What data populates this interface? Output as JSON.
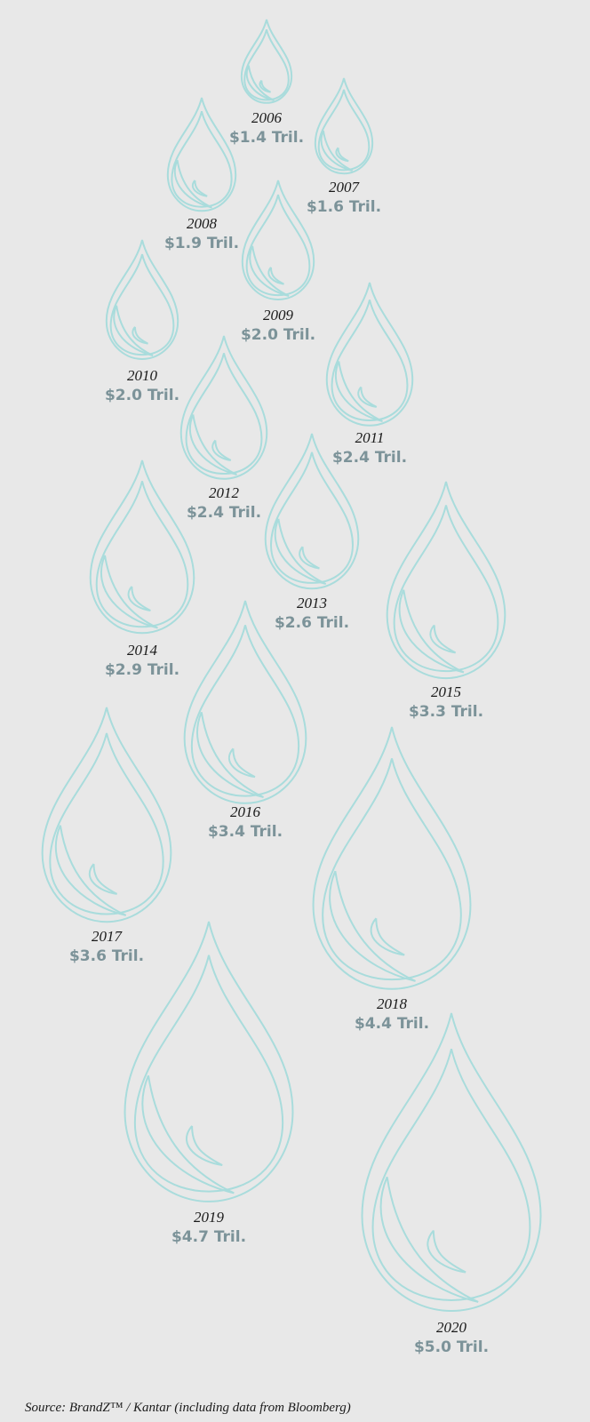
{
  "chart_data": {
    "type": "drop",
    "categories": [
      "2006",
      "2007",
      "2008",
      "2009",
      "2010",
      "2011",
      "2012",
      "2013",
      "2014",
      "2015",
      "2016",
      "2017",
      "2018",
      "2019",
      "2020"
    ],
    "values": [
      1.4,
      1.6,
      1.9,
      2.0,
      2.0,
      2.4,
      2.4,
      2.6,
      2.9,
      3.3,
      3.4,
      3.6,
      4.4,
      4.7,
      5.0
    ],
    "value_labels": [
      "$1.4 Tril.",
      "$1.6 Tril.",
      "$1.9 Tril.",
      "$2.0 Tril.",
      "$2.0 Tril.",
      "$2.4 Tril.",
      "$2.4 Tril.",
      "$2.6 Tril.",
      "$2.9 Tril.",
      "$3.3 Tril.",
      "$3.4 Tril.",
      "$3.6 Tril.",
      "$4.4 Tril.",
      "$4.7 Tril.",
      "$5.0 Tril."
    ],
    "color": "#a9dcdc",
    "source": "Source: BrandZ™ / Kantar (including data from Bloomberg)"
  }
}
